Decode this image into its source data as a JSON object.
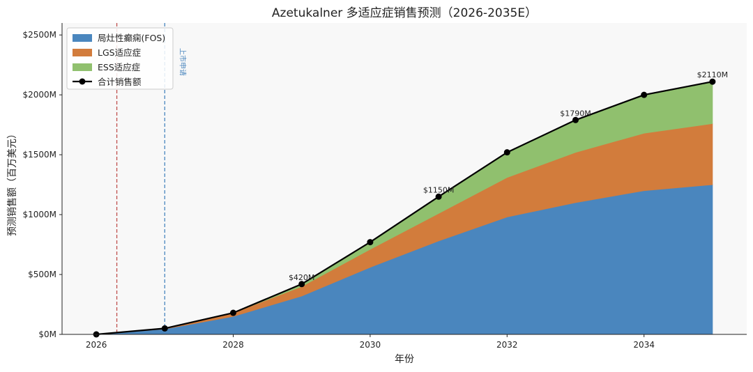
{
  "chart_data": {
    "type": "area",
    "title": "Azetukalner 多适应症销售预测（2026-2035E）",
    "xlabel": "年份",
    "ylabel": "预测销售额（百万美元）",
    "x": [
      2026,
      2027,
      2028,
      2029,
      2030,
      2031,
      2032,
      2033,
      2034,
      2035
    ],
    "xlim": [
      2025.5,
      2035.5
    ],
    "ylim": [
      0,
      2600
    ],
    "x_ticks": [
      "2026",
      "2028",
      "2030",
      "2032",
      "2034"
    ],
    "x_tick_values": [
      2026,
      2028,
      2030,
      2032,
      2034
    ],
    "y_ticks": [
      "$0M",
      "$500M",
      "$1000M",
      "$1500M",
      "$2000M",
      "$2500M"
    ],
    "y_tick_values": [
      0,
      500,
      1000,
      1500,
      2000,
      2500
    ],
    "series": [
      {
        "name": "局灶性癫痫(FOS)",
        "color": "#4a86be",
        "values": [
          0,
          45,
          150,
          320,
          560,
          780,
          980,
          1100,
          1200,
          1250
        ]
      },
      {
        "name": "LGS适应症",
        "color": "#d27c3c",
        "values": [
          0,
          5,
          30,
          80,
          150,
          230,
          330,
          420,
          480,
          510
        ]
      },
      {
        "name": "ESS适应症",
        "color": "#90c06e",
        "values": [
          0,
          0,
          0,
          20,
          60,
          140,
          210,
          270,
          320,
          350
        ]
      }
    ],
    "total": {
      "name": "合计销售额",
      "color": "#000000",
      "values": [
        0,
        50,
        180,
        420,
        770,
        1150,
        1520,
        1790,
        2000,
        2110
      ]
    },
    "data_labels": [
      {
        "x": 2029,
        "text": "$420M"
      },
      {
        "x": 2031,
        "text": "$1150M"
      },
      {
        "x": 2033,
        "text": "$1790M"
      },
      {
        "x": 2035,
        "text": "$2110M"
      }
    ],
    "vertical_lines": [
      {
        "x": 2026.3,
        "color": "#c0504d",
        "label": ""
      },
      {
        "x": 2027.0,
        "color": "#4a86be",
        "label": "上市申请"
      }
    ],
    "legend_position": "top-left",
    "grid": false
  }
}
